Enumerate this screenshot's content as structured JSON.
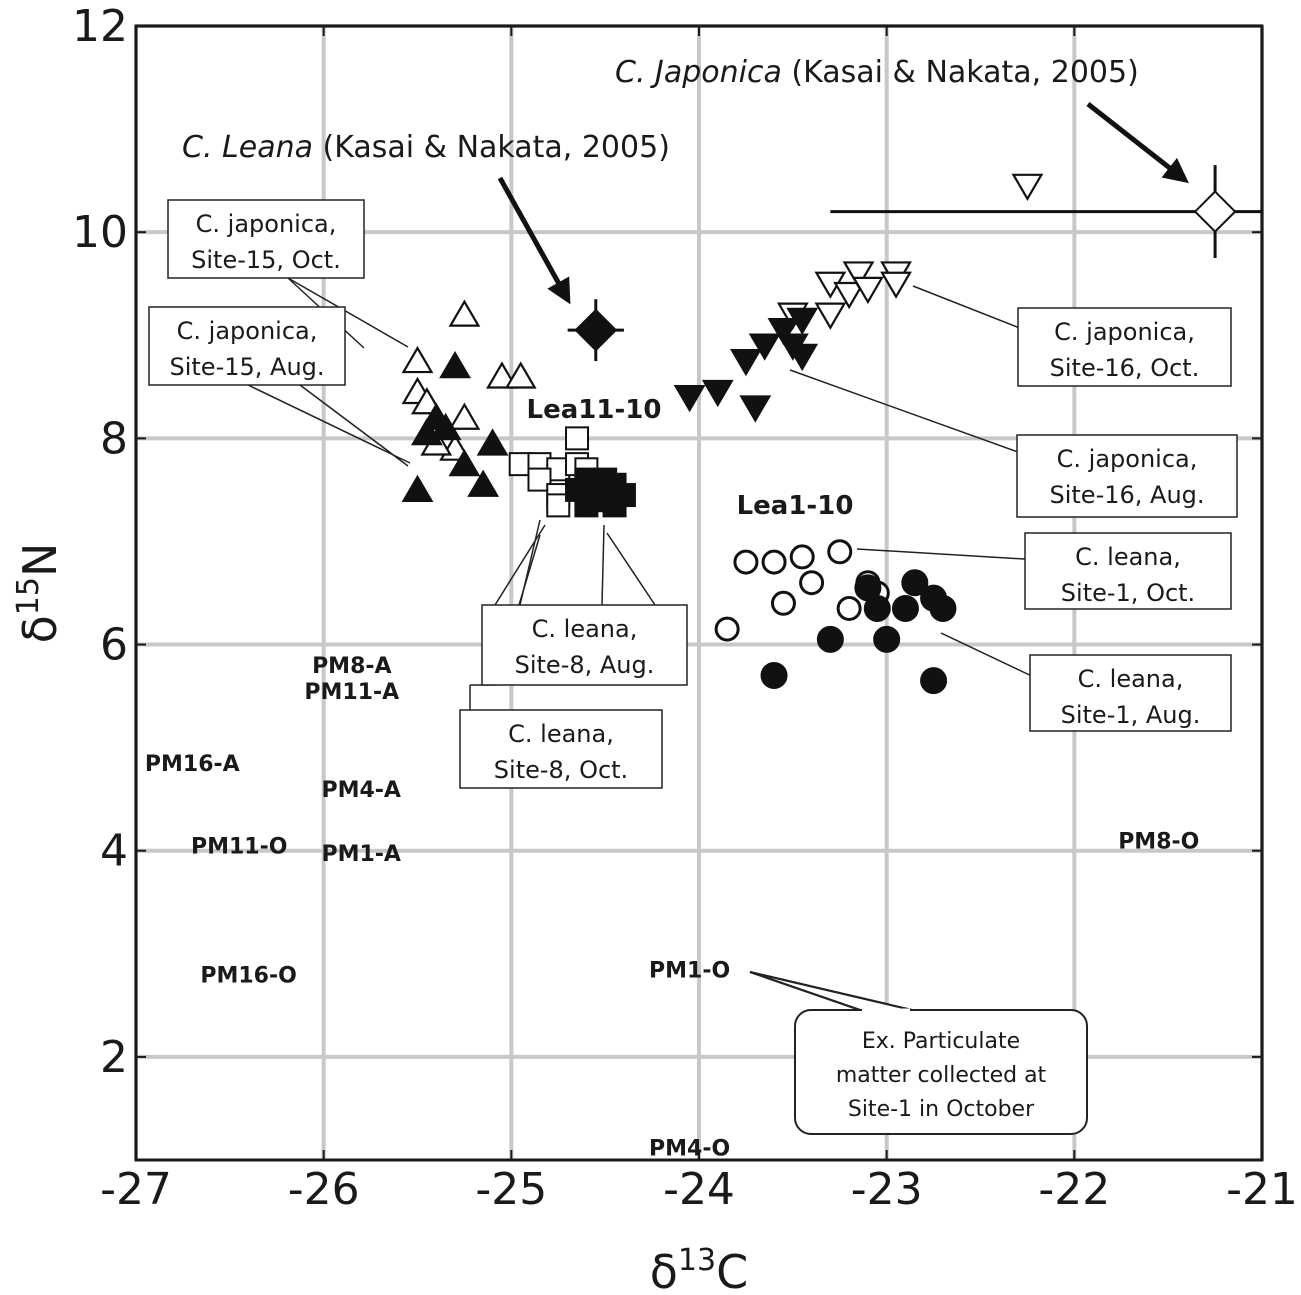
{
  "chart_data": {
    "type": "scatter",
    "title": "",
    "xlabel": "δ¹³C",
    "ylabel": "δ¹⁵N",
    "xlabel_base": "δ",
    "xlabel_sup": "13",
    "xlabel_suffix": "C",
    "ylabel_base": "δ",
    "ylabel_sup": "15",
    "ylabel_suffix": "N",
    "xlim": [
      -27,
      -21
    ],
    "ylim": [
      1,
      12
    ],
    "x_ticks": [
      -27,
      -26,
      -25,
      -24,
      -23,
      -22,
      -21
    ],
    "y_ticks": [
      2,
      4,
      6,
      8,
      10,
      12
    ],
    "grid": true,
    "series": [
      {
        "name": "C. japonica, Site-15, Oct.",
        "marker": "triangle-up-open",
        "points": [
          [
            -25.5,
            8.75
          ],
          [
            -25.5,
            8.45
          ],
          [
            -25.45,
            8.35
          ],
          [
            -25.25,
            9.2
          ],
          [
            -25.25,
            8.2
          ],
          [
            -25.3,
            7.9
          ],
          [
            -25.4,
            8.1
          ],
          [
            -25.05,
            8.6
          ],
          [
            -24.95,
            8.6
          ],
          [
            -25.4,
            7.95
          ]
        ]
      },
      {
        "name": "C. japonica, Site-15, Aug.",
        "marker": "triangle-up-filled",
        "points": [
          [
            -25.5,
            7.5
          ],
          [
            -25.45,
            8.05
          ],
          [
            -25.35,
            8.1
          ],
          [
            -25.3,
            8.7
          ],
          [
            -25.25,
            7.75
          ],
          [
            -25.15,
            7.55
          ],
          [
            -25.1,
            7.95
          ],
          [
            -25.4,
            8.2
          ]
        ]
      },
      {
        "name": "C. japonica, Site-16, Oct.",
        "marker": "triangle-down-open",
        "points": [
          [
            -22.25,
            10.45
          ],
          [
            -23.3,
            9.5
          ],
          [
            -23.2,
            9.4
          ],
          [
            -23.15,
            9.6
          ],
          [
            -23.1,
            9.45
          ],
          [
            -22.95,
            9.6
          ],
          [
            -22.95,
            9.5
          ],
          [
            -23.3,
            9.2
          ],
          [
            -23.5,
            9.2
          ]
        ]
      },
      {
        "name": "C. japonica, Site-16, Aug.",
        "marker": "triangle-down-filled",
        "points": [
          [
            -24.05,
            8.4
          ],
          [
            -23.9,
            8.45
          ],
          [
            -23.75,
            8.75
          ],
          [
            -23.65,
            8.9
          ],
          [
            -23.7,
            8.3
          ],
          [
            -23.55,
            9.05
          ],
          [
            -23.45,
            9.15
          ],
          [
            -23.45,
            8.8
          ],
          [
            -23.5,
            8.9
          ]
        ]
      },
      {
        "name": "C. leana, Site-1, Oct.",
        "marker": "circle-open",
        "points": [
          [
            -23.85,
            6.15
          ],
          [
            -23.75,
            6.8
          ],
          [
            -23.6,
            6.8
          ],
          [
            -23.45,
            6.85
          ],
          [
            -23.4,
            6.6
          ],
          [
            -23.55,
            6.4
          ],
          [
            -23.25,
            6.9
          ],
          [
            -23.2,
            6.35
          ],
          [
            -23.1,
            6.6
          ],
          [
            -23.05,
            6.5
          ]
        ]
      },
      {
        "name": "C. leana, Site-1, Aug.",
        "marker": "circle-filled",
        "points": [
          [
            -23.6,
            5.7
          ],
          [
            -23.3,
            6.05
          ],
          [
            -23.1,
            6.55
          ],
          [
            -23.05,
            6.35
          ],
          [
            -23.0,
            6.05
          ],
          [
            -22.9,
            6.35
          ],
          [
            -22.85,
            6.6
          ],
          [
            -22.75,
            6.45
          ],
          [
            -22.7,
            6.35
          ],
          [
            -22.75,
            5.65
          ]
        ]
      },
      {
        "name": "C. leana, Site-8, Oct.",
        "marker": "square-open",
        "points": [
          [
            -24.95,
            7.75
          ],
          [
            -24.85,
            7.75
          ],
          [
            -24.75,
            7.7
          ],
          [
            -24.85,
            7.6
          ],
          [
            -24.75,
            7.45
          ],
          [
            -24.75,
            7.35
          ],
          [
            -24.65,
            8.0
          ],
          [
            -24.65,
            7.75
          ],
          [
            -24.6,
            7.7
          ]
        ]
      },
      {
        "name": "C. leana, Site-8, Aug.",
        "marker": "square-filled",
        "points": [
          [
            -24.65,
            7.5
          ],
          [
            -24.6,
            7.35
          ],
          [
            -24.55,
            7.4
          ],
          [
            -24.5,
            7.6
          ],
          [
            -24.45,
            7.55
          ],
          [
            -24.45,
            7.35
          ],
          [
            -24.4,
            7.45
          ],
          [
            -24.6,
            7.6
          ]
        ]
      }
    ],
    "reference_points": [
      {
        "label_italic": "C. Leana",
        "label_rest": " (Kasai & Nakata, 2005)",
        "x": -24.55,
        "y": 9.05,
        "xerr": 0.15,
        "yerr": 0.3,
        "marker": "diamond-filled"
      },
      {
        "label_italic": "C. Japonica",
        "label_rest": " (Kasai & Nakata, 2005)",
        "x": -21.25,
        "y": 10.2,
        "xerr": 2.05,
        "yerr": 0.45,
        "marker": "diamond-open"
      }
    ],
    "cluster_labels": [
      "Lea11-10",
      "Lea1-10"
    ],
    "particulate_labels": [
      {
        "text": "PM8-A",
        "x": -25.85,
        "y": 5.8
      },
      {
        "text": "PM11-A",
        "x": -25.85,
        "y": 5.55
      },
      {
        "text": "PM16-A",
        "x": -26.7,
        "y": 4.85
      },
      {
        "text": "PM4-A",
        "x": -25.8,
        "y": 4.6
      },
      {
        "text": "PM11-O",
        "x": -26.45,
        "y": 4.05
      },
      {
        "text": "PM1-A",
        "x": -25.8,
        "y": 3.98
      },
      {
        "text": "PM16-O",
        "x": -26.4,
        "y": 2.8
      },
      {
        "text": "PM1-O",
        "x": -24.05,
        "y": 2.85
      },
      {
        "text": "PM4-O",
        "x": -24.05,
        "y": 1.12
      },
      {
        "text": "PM8-O",
        "x": -21.55,
        "y": 4.1
      }
    ],
    "callouts": [
      {
        "lines": [
          "C. japonica,",
          "Site-15, Oct."
        ]
      },
      {
        "lines": [
          "C. japonica,",
          "Site-15, Aug."
        ]
      },
      {
        "lines": [
          "C. japonica,",
          "Site-16, Oct."
        ]
      },
      {
        "lines": [
          "C. japonica,",
          "Site-16, Aug."
        ]
      },
      {
        "lines": [
          "C. leana,",
          "Site-1, Oct."
        ]
      },
      {
        "lines": [
          "C. leana,",
          "Site-1, Aug."
        ]
      },
      {
        "lines": [
          "C. leana,",
          "Site-8, Aug."
        ]
      },
      {
        "lines": [
          "C. leana,",
          "Site-8, Oct."
        ]
      }
    ],
    "note": {
      "lines": [
        "Ex. Particulate",
        "matter collected at",
        "Site-1 in October"
      ]
    }
  }
}
